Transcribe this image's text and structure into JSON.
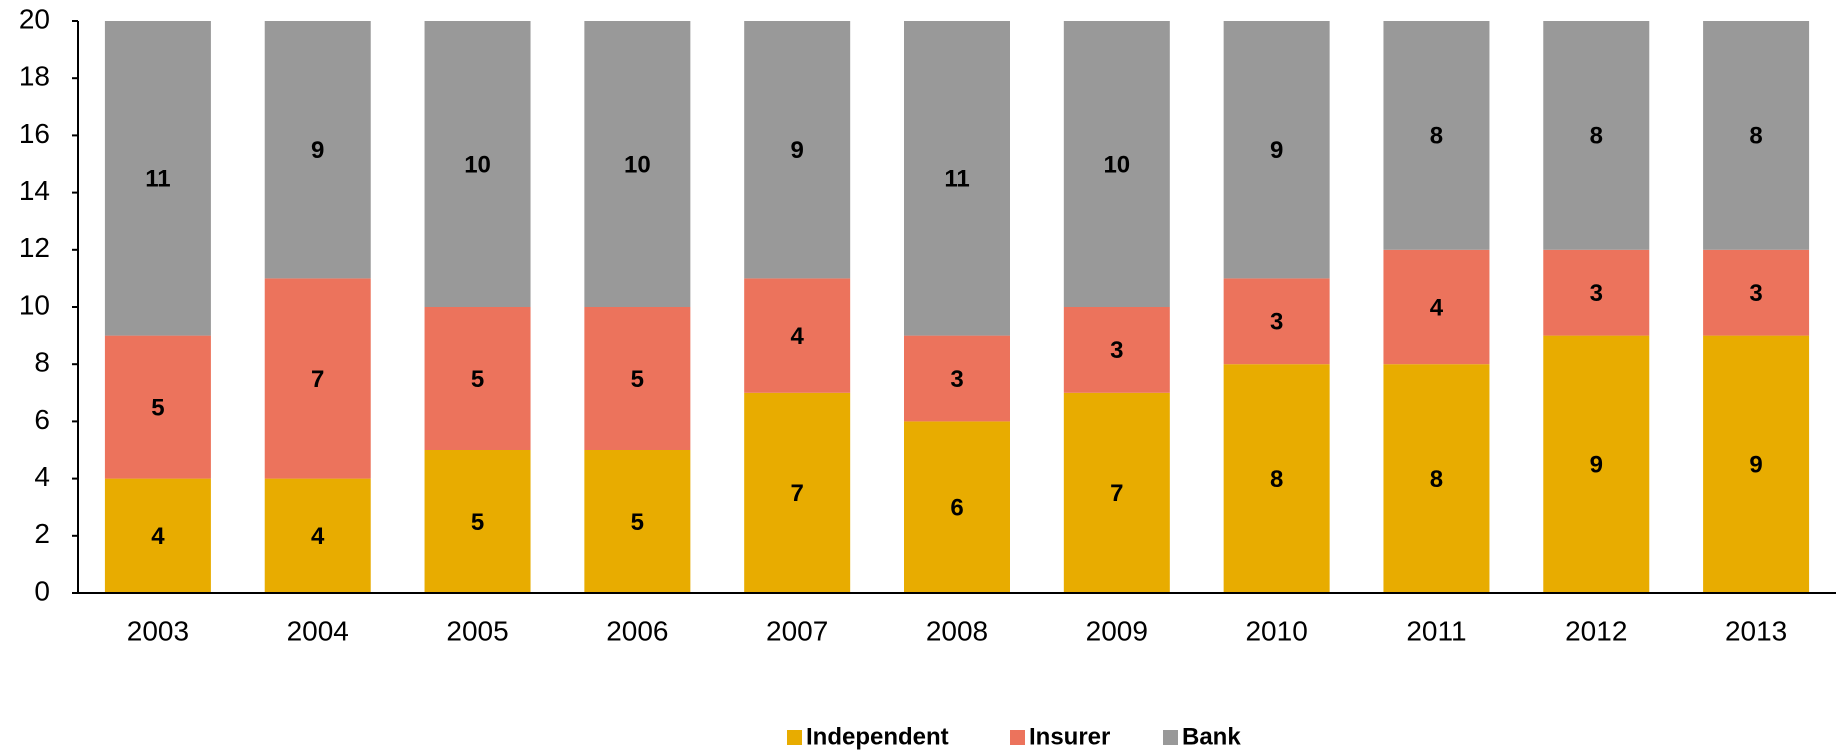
{
  "chart_data": {
    "type": "stacked-bar",
    "categories": [
      "2003",
      "2004",
      "2005",
      "2006",
      "2007",
      "2008",
      "2009",
      "2010",
      "2011",
      "2012",
      "2013"
    ],
    "series": [
      {
        "name": "Independent",
        "color": "#e8ac00",
        "values": [
          4,
          4,
          5,
          5,
          7,
          6,
          7,
          8,
          8,
          9,
          9
        ]
      },
      {
        "name": "Insurer",
        "color": "#ec735c",
        "values": [
          5,
          7,
          5,
          5,
          4,
          3,
          3,
          3,
          4,
          3,
          3
        ]
      },
      {
        "name": "Bank",
        "color": "#999999",
        "values": [
          11,
          9,
          10,
          10,
          9,
          11,
          10,
          9,
          8,
          8,
          8
        ]
      }
    ],
    "ylim": [
      0,
      20
    ],
    "yticks": [
      0,
      2,
      4,
      6,
      8,
      10,
      12,
      14,
      16,
      18,
      20
    ],
    "grid": false,
    "legend": "bottom"
  }
}
